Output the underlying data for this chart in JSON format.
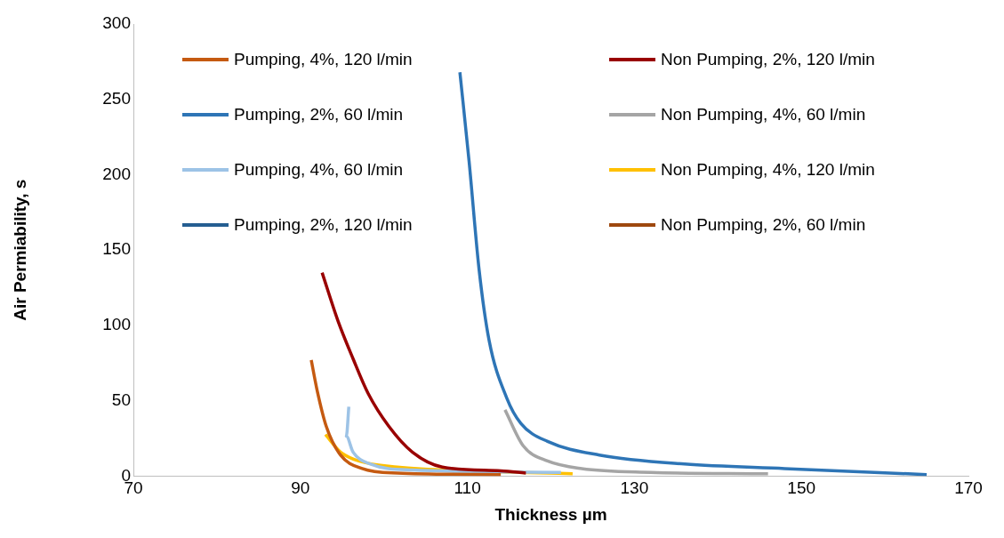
{
  "chart_data": {
    "type": "line",
    "xlabel": "Thickness µm",
    "ylabel": "Air Permiability, s",
    "xlim": [
      70,
      170
    ],
    "xticks": [
      70,
      90,
      110,
      130,
      150,
      170
    ],
    "ylim": [
      0,
      300
    ],
    "yticks": [
      0,
      50,
      100,
      150,
      200,
      250,
      300
    ],
    "grid": false,
    "legend": "top",
    "marker": "none",
    "line_style": "solid",
    "series": [
      {
        "name": "Pumping, 4%, 120 l/min",
        "color": "#c55a11",
        "x": [
          91.3,
          92.0,
          93.1,
          94.8,
          97.4,
          101.6,
          114
        ],
        "values": [
          77,
          57,
          33,
          14,
          5,
          2,
          1
        ]
      },
      {
        "name": "Non Pumping, 2%, 120 l/min",
        "color": "#990000",
        "x": [
          92.6,
          94.5,
          96.3,
          98.1,
          100.6,
          103.4,
          107,
          114,
          117
        ],
        "values": [
          135,
          103,
          78,
          55,
          33,
          16,
          6,
          3.5,
          2
        ]
      },
      {
        "name": "Pumping, 2%, 60 l/min",
        "color": "#2e75b6",
        "x": [
          109.1,
          110.2,
          111.4,
          112.6,
          114.7,
          116.4,
          119.6,
          125.8,
          136,
          148,
          165
        ],
        "values": [
          268,
          209,
          137,
          90,
          52,
          35,
          23,
          14,
          8,
          5,
          1
        ]
      },
      {
        "name": "Non Pumping, 4%, 60 l/min",
        "color": "#a5a5a5",
        "x": [
          114.5,
          116.7,
          119.6,
          123.7,
          131.9,
          146
        ],
        "values": [
          44,
          20,
          10,
          5,
          2.5,
          1.5
        ]
      },
      {
        "name": "Pumping, 4%, 60 l/min",
        "color": "#9dc3e6",
        "x": [
          95.8,
          95.5,
          96.3,
          98.4,
          103.4,
          121.2
        ],
        "values": [
          46,
          26.5,
          16,
          8,
          4,
          2.5
        ]
      },
      {
        "name": "Non Pumping, 4%, 120 l/min",
        "color": "#ffc000",
        "x": [
          93,
          94.8,
          97,
          101.6,
          110.5,
          122.6
        ],
        "values": [
          27.6,
          16,
          10,
          6,
          3.5,
          1.5
        ]
      },
      {
        "name": "Pumping, 2%, 120 l/min",
        "color": "#255e91"
      },
      {
        "name": "Non Pumping, 2%, 60 l/min",
        "color": "#9e480e"
      }
    ]
  }
}
